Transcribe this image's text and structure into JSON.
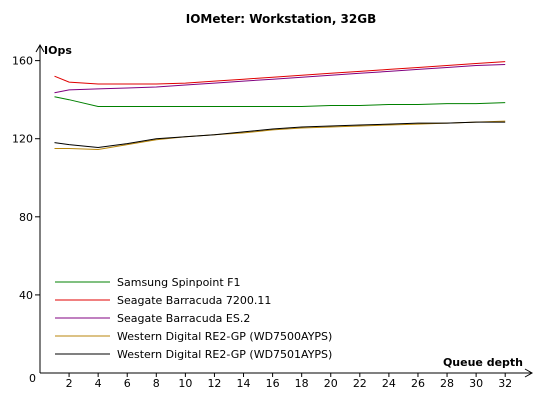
{
  "chart_data": {
    "type": "line",
    "title": "IOMeter: Workstation, 32GB",
    "ylabel": "IOps",
    "xlabel": "Queue depth",
    "x": [
      1,
      2,
      4,
      6,
      8,
      10,
      12,
      14,
      16,
      18,
      20,
      22,
      24,
      26,
      28,
      30,
      32
    ],
    "xticks": [
      0,
      2,
      4,
      6,
      8,
      10,
      12,
      14,
      16,
      18,
      20,
      22,
      24,
      26,
      28,
      30,
      32
    ],
    "yticks": [
      0,
      40,
      80,
      120,
      160
    ],
    "xlim": [
      0,
      33.5
    ],
    "ylim": [
      0,
      168
    ],
    "grid": false,
    "legend_position": "bottom-left",
    "series": [
      {
        "name": "Samsung Spinpoint F1",
        "color": "#008000",
        "values": [
          141.5,
          140,
          136.5,
          136.5,
          136.5,
          136.5,
          136.5,
          136.5,
          136.5,
          136.5,
          137,
          137,
          137.5,
          137.5,
          138,
          138,
          138.5
        ]
      },
      {
        "name": "Seagate Barracuda 7200.11",
        "color": "#e00000",
        "values": [
          152,
          149,
          148,
          148,
          148,
          148.5,
          149.5,
          150.5,
          151.5,
          152.5,
          153.5,
          154.5,
          155.5,
          156.5,
          157.5,
          158.5,
          159.5
        ]
      },
      {
        "name": "Seagate Barracuda ES.2",
        "color": "#800080",
        "values": [
          143.5,
          145,
          145.5,
          146,
          146.5,
          147.5,
          148.5,
          149.5,
          150.5,
          151.5,
          152.5,
          153.5,
          154.5,
          155.5,
          156.5,
          157.5,
          158
        ]
      },
      {
        "name": "Western Digital RE2-GP (WD7500AYPS)",
        "color": "#b8860b",
        "values": [
          115,
          115,
          114.5,
          117,
          119.5,
          121,
          122,
          123,
          124.5,
          125.5,
          126,
          126.5,
          127,
          127.5,
          128,
          128.5,
          129
        ]
      },
      {
        "name": "Western Digital RE2-GP (WD7501AYPS)",
        "color": "#000000",
        "values": [
          118,
          117,
          115.5,
          117.5,
          120,
          121,
          122,
          123.5,
          125,
          126,
          126.5,
          127,
          127.5,
          128,
          128,
          128.5,
          128.5
        ]
      }
    ]
  }
}
